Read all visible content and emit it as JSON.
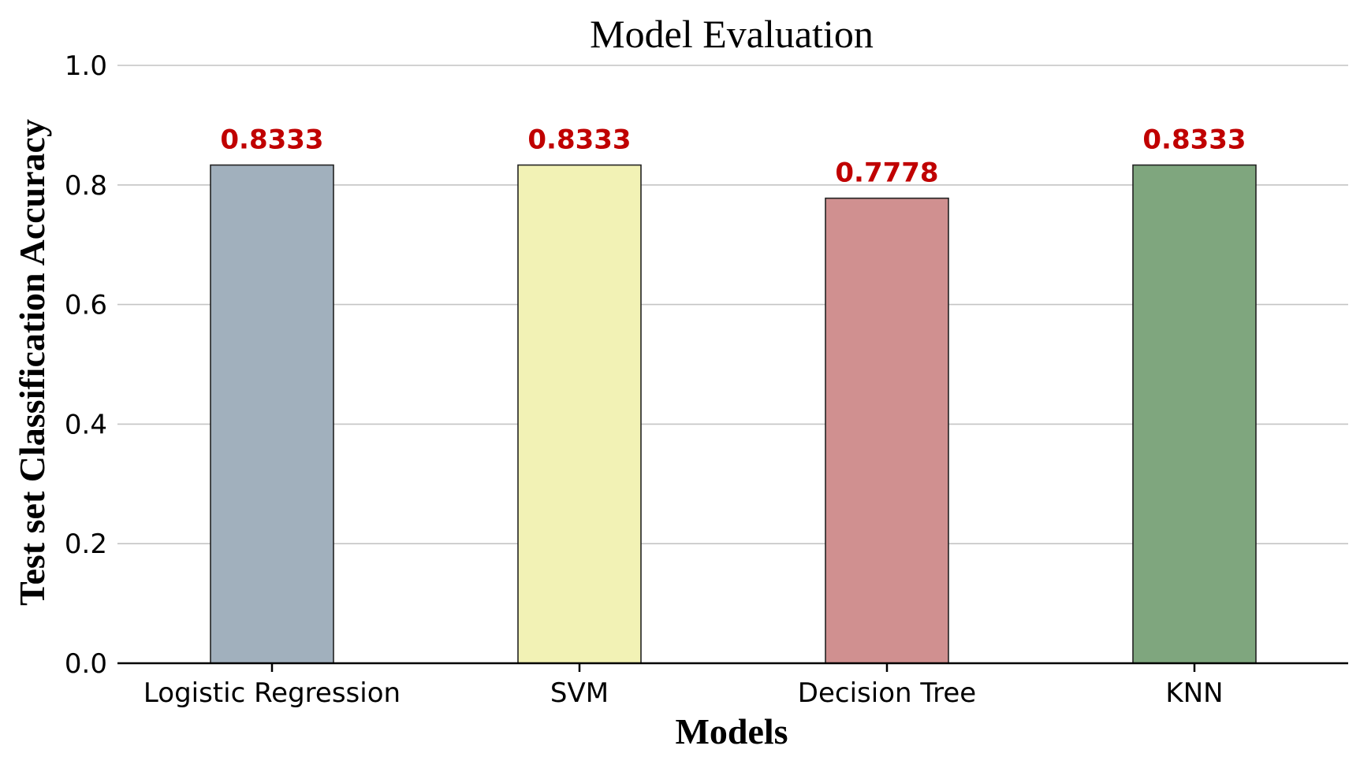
{
  "chart_data": {
    "type": "bar",
    "title": "Model Evaluation",
    "xlabel": "Models",
    "ylabel": "Test set Classification Accuracy",
    "categories": [
      "Logistic Regression",
      "SVM",
      "Decision Tree",
      "KNN"
    ],
    "values": [
      0.8333,
      0.8333,
      0.7778,
      0.8333
    ],
    "value_labels": [
      "0.8333",
      "0.8333",
      "0.7778",
      "0.8333"
    ],
    "bar_colors": [
      "#a1b0bd",
      "#f2f2b5",
      "#d09090",
      "#7fa67e"
    ],
    "label_color": "#c00000",
    "ylim": [
      0,
      1.0
    ],
    "yticks": [
      "0.0",
      "0.2",
      "0.4",
      "0.6",
      "0.8",
      "1.0"
    ],
    "ytick_values": [
      0.0,
      0.2,
      0.4,
      0.6,
      0.8,
      1.0
    ],
    "grid": "horizontal",
    "legend": "none"
  }
}
